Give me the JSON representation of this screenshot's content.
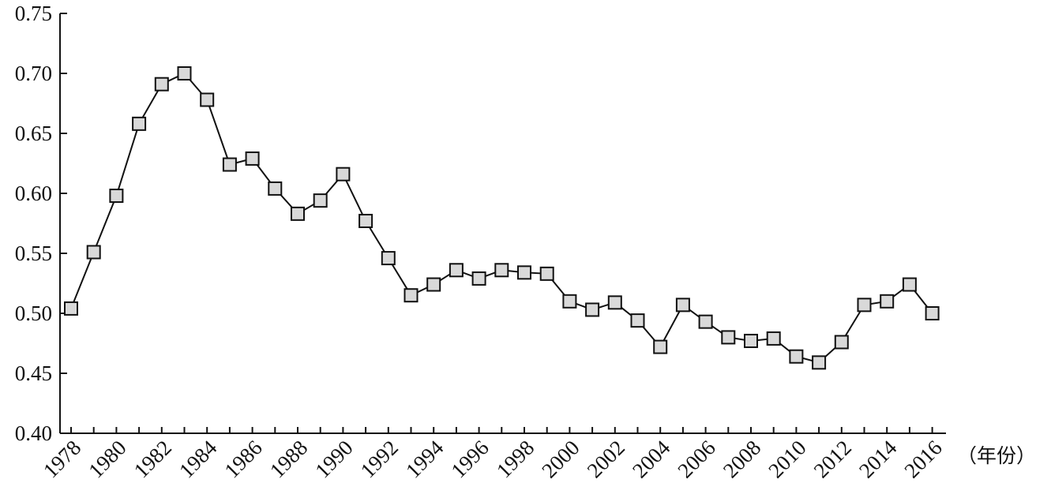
{
  "chart_data": {
    "type": "line",
    "x": [
      1978,
      1979,
      1980,
      1981,
      1982,
      1983,
      1984,
      1985,
      1986,
      1987,
      1988,
      1989,
      1990,
      1991,
      1992,
      1993,
      1994,
      1995,
      1996,
      1997,
      1998,
      1999,
      2000,
      2001,
      2002,
      2003,
      2004,
      2005,
      2006,
      2007,
      2008,
      2009,
      2010,
      2011,
      2012,
      2013,
      2014,
      2015,
      2016
    ],
    "series": [
      {
        "values": [
          0.504,
          0.551,
          0.598,
          0.658,
          0.691,
          0.7,
          0.678,
          0.624,
          0.629,
          0.604,
          0.583,
          0.594,
          0.616,
          0.577,
          0.546,
          0.515,
          0.524,
          0.536,
          0.529,
          0.536,
          0.534,
          0.533,
          0.51,
          0.503,
          0.509,
          0.494,
          0.472,
          0.507,
          0.493,
          0.48,
          0.477,
          0.479,
          0.464,
          0.459,
          0.476,
          0.507,
          0.51,
          0.524,
          0.5
        ],
        "marker": "square",
        "marker_color": "#d9d9d9",
        "line_color": "#111111"
      }
    ],
    "x_tick_labels": [
      "1978",
      "1980",
      "1982",
      "1984",
      "1986",
      "1988",
      "1990",
      "1992",
      "1994",
      "1996",
      "1998",
      "2000",
      "2002",
      "2004",
      "2006",
      "2008",
      "2010",
      "2012",
      "2014",
      "2016"
    ],
    "y_tick_labels": [
      "0.40",
      "0.45",
      "0.50",
      "0.55",
      "0.60",
      "0.65",
      "0.70",
      "0.75"
    ],
    "xlabel": "（年份）",
    "ylabel": "",
    "title": "",
    "xlim": [
      1977.5,
      1978.5
    ],
    "ylim": [
      0.4,
      0.75
    ],
    "grid": false
  }
}
